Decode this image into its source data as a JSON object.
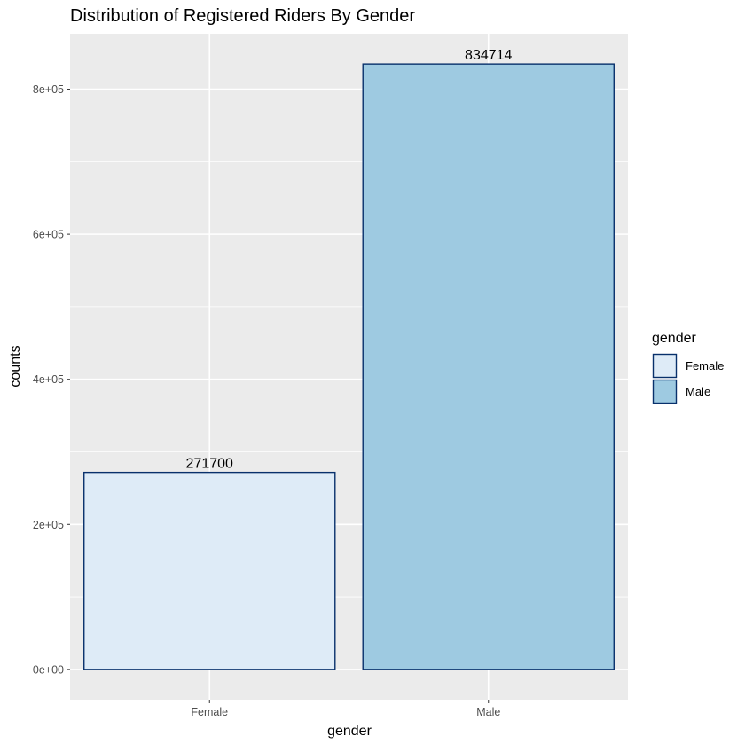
{
  "chart_data": {
    "type": "bar",
    "title": "Distribution of Registered Riders By Gender",
    "xlabel": "gender",
    "ylabel": "counts",
    "categories": [
      "Female",
      "Male"
    ],
    "values": [
      271700,
      834714
    ],
    "data_labels": [
      "271700",
      "834714"
    ],
    "yticks": [
      0,
      200000,
      400000,
      600000,
      800000
    ],
    "ytick_labels": [
      "0e+00",
      "2e+05",
      "4e+05",
      "6e+05",
      "8e+05"
    ],
    "ylim": [
      -41736,
      876450
    ],
    "grid": true,
    "legend": {
      "title": "gender",
      "position": "right",
      "entries": [
        "Female",
        "Male"
      ]
    },
    "colors": {
      "fills": [
        "#deebf7",
        "#9ecae1"
      ],
      "outline": "#08306b",
      "panel_background": "#ebebeb",
      "grid": "#ffffff"
    }
  }
}
